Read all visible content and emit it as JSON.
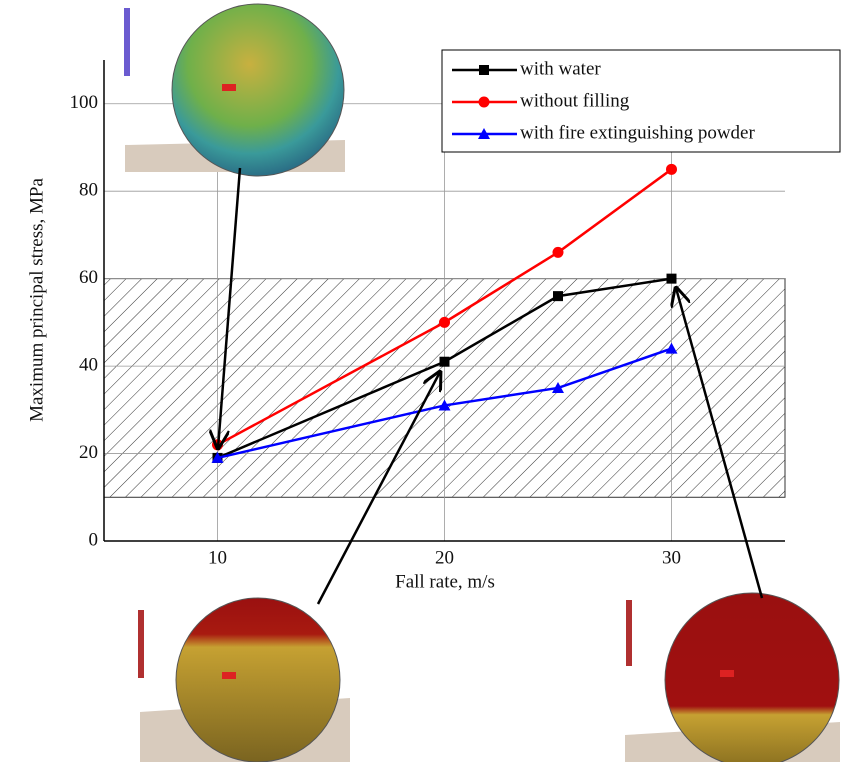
{
  "chart_data": {
    "type": "line",
    "x_label": "Fall rate, m/s",
    "y_label": "Maximum principal stress, MPa",
    "x": [
      10,
      20,
      25,
      30
    ],
    "series": [
      {
        "name": "with water",
        "color": "#000000",
        "marker": "square",
        "values": [
          19,
          41,
          56,
          60
        ]
      },
      {
        "name": "without filling",
        "color": "#ff0000",
        "marker": "circle",
        "values": [
          22,
          50,
          66,
          85
        ]
      },
      {
        "name": "with fire extinguishing powder",
        "color": "#0000ff",
        "marker": "triangle",
        "values": [
          19,
          31,
          35,
          44
        ]
      }
    ],
    "xlim": [
      5,
      35
    ],
    "xticks": [
      10,
      20,
      30
    ],
    "ylim": [
      0,
      110
    ],
    "yticks": [
      0,
      20,
      40,
      60,
      80,
      100
    ],
    "shaded_band": [
      10,
      60
    ],
    "grid": true,
    "legend": "upper right"
  }
}
